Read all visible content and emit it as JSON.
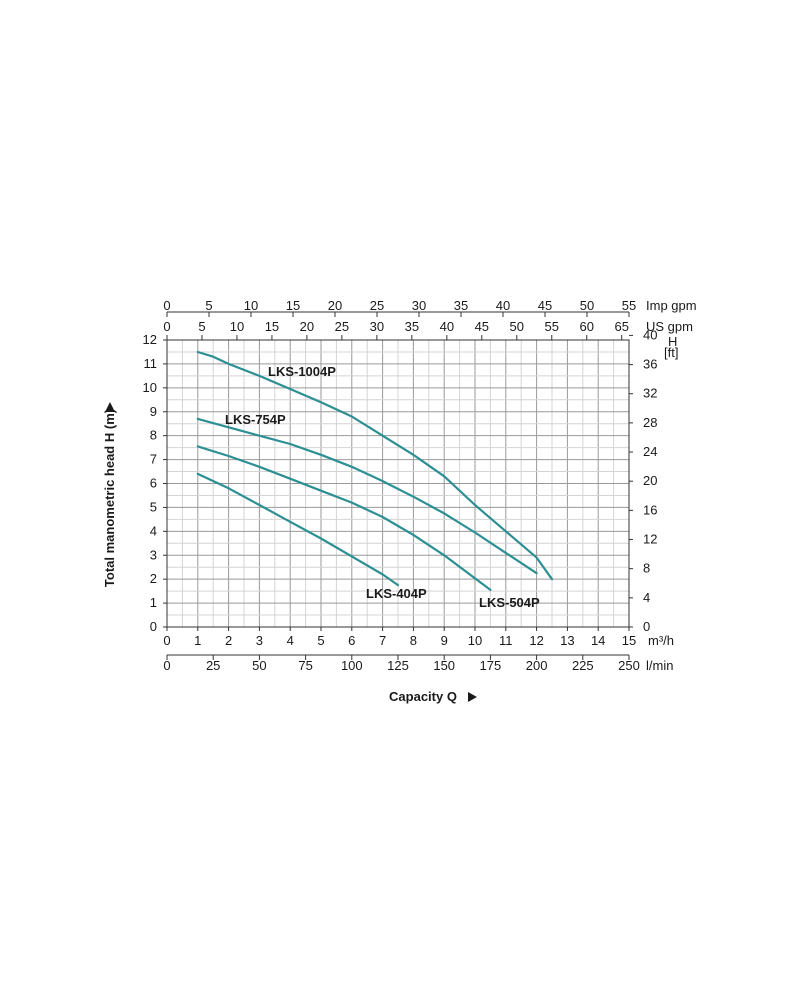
{
  "chart_data": {
    "type": "line",
    "xlabel": "Capacity Q",
    "ylabel": "Total manometric head H (m)",
    "xlim": [
      0,
      15
    ],
    "ylim": [
      0,
      12
    ],
    "x_unit": "m³/h",
    "x_ticks": [
      "0",
      "1",
      "2",
      "3",
      "4",
      "5",
      "6",
      "7",
      "8",
      "9",
      "10",
      "11",
      "12",
      "13",
      "14",
      "15"
    ],
    "y_ticks": [
      "0",
      "1",
      "2",
      "3",
      "4",
      "5",
      "6",
      "7",
      "8",
      "9",
      "10",
      "11",
      "12"
    ],
    "grid": true,
    "secondary_axes": {
      "imp_gpm": {
        "label": "Imp gpm",
        "ticks": [
          "0",
          "5",
          "10",
          "15",
          "20",
          "25",
          "30",
          "35",
          "40",
          "45",
          "50",
          "55"
        ],
        "values": [
          0,
          5,
          10,
          15,
          20,
          25,
          30,
          35,
          40,
          45,
          50,
          55
        ],
        "max": 55
      },
      "us_gpm": {
        "label": "US gpm",
        "ticks": [
          "0",
          "5",
          "10",
          "15",
          "20",
          "25",
          "30",
          "35",
          "40",
          "45",
          "50",
          "55",
          "60",
          "65"
        ],
        "values": [
          0,
          5,
          10,
          15,
          20,
          25,
          30,
          35,
          40,
          45,
          50,
          55,
          60,
          65
        ],
        "max": 66.04
      },
      "l_min": {
        "label": "l/min",
        "ticks": [
          "0",
          "25",
          "50",
          "75",
          "100",
          "125",
          "150",
          "175",
          "200",
          "225",
          "250"
        ],
        "values": [
          0,
          25,
          50,
          75,
          100,
          125,
          150,
          175,
          200,
          225,
          250
        ],
        "max": 250
      },
      "h_ft": {
        "label": "H",
        "sublabel": "[ft]",
        "ticks": [
          "0",
          "4",
          "8",
          "12",
          "16",
          "20",
          "24",
          "28",
          "32",
          "36",
          "40"
        ],
        "values": [
          0,
          4,
          8,
          12,
          16,
          20,
          24,
          28,
          32,
          36,
          40
        ],
        "max": 39.37
      }
    },
    "series": [
      {
        "name": "LKS-1004P",
        "x": [
          1,
          1.5,
          2,
          3,
          4,
          5,
          6,
          7,
          8,
          9,
          10,
          11,
          12,
          12.5
        ],
        "y": [
          11.5,
          11.3,
          11.0,
          10.5,
          9.95,
          9.4,
          8.8,
          8.0,
          7.2,
          6.3,
          5.1,
          4.0,
          2.9,
          2.0
        ]
      },
      {
        "name": "LKS-754P",
        "x": [
          1,
          2,
          3,
          4,
          5,
          6,
          7,
          8,
          9,
          10,
          11,
          12
        ],
        "y": [
          8.7,
          8.35,
          8.0,
          7.65,
          7.2,
          6.7,
          6.1,
          5.45,
          4.75,
          3.95,
          3.1,
          2.25
        ]
      },
      {
        "name": "LKS-504P",
        "x": [
          1,
          2,
          3,
          4,
          5,
          6,
          7,
          8,
          9,
          10.5
        ],
        "y": [
          7.55,
          7.15,
          6.7,
          6.2,
          5.7,
          5.2,
          4.6,
          3.85,
          3.0,
          1.55
        ]
      },
      {
        "name": "LKS-404P",
        "x": [
          1,
          2,
          3,
          4,
          5,
          6,
          7,
          7.5
        ],
        "y": [
          6.4,
          5.8,
          5.1,
          4.4,
          3.7,
          2.95,
          2.2,
          1.75
        ]
      }
    ],
    "line_color": "#2b8f93"
  }
}
